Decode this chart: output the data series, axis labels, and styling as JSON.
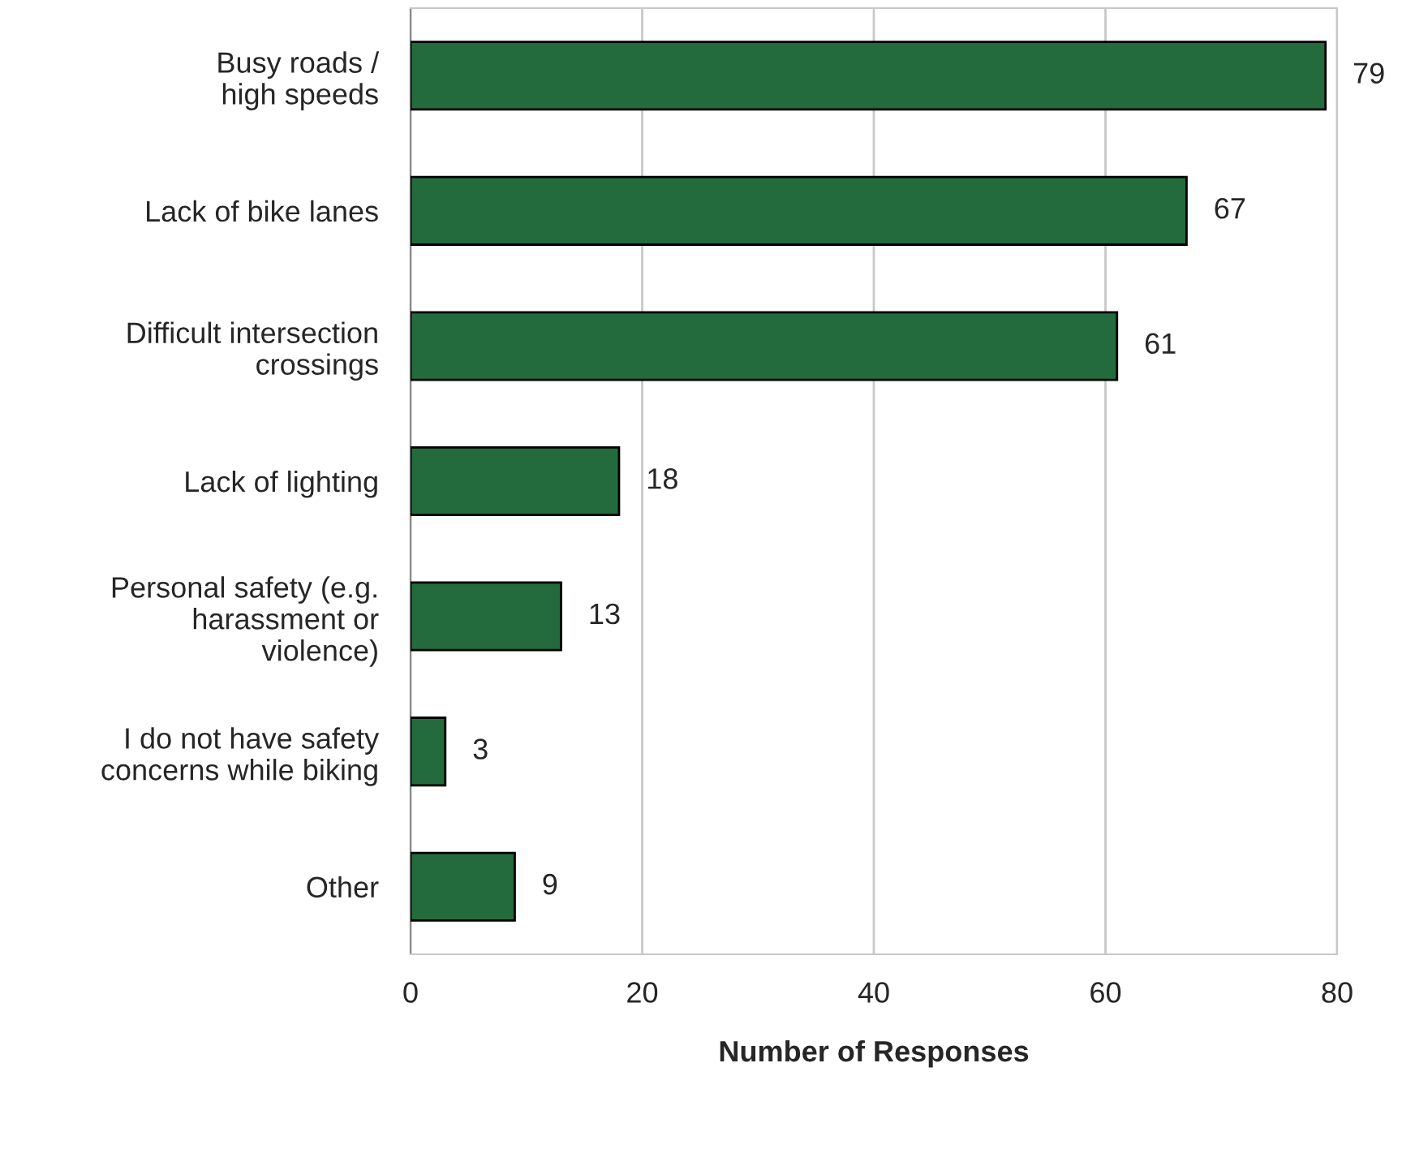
{
  "chart_data": {
    "type": "bar",
    "orientation": "horizontal",
    "xlabel": "Number of Responses",
    "categories": [
      "Busy roads /\nhigh speeds",
      "Lack of bike lanes",
      "Difficult intersection\ncrossings",
      "Lack of lighting",
      "Personal safety (e.g.\nharassment or\nviolence)",
      "I do not have safety\nconcerns while biking",
      "Other"
    ],
    "values": [
      79,
      67,
      61,
      18,
      13,
      3,
      9
    ],
    "color": "#236b3c",
    "xlim": [
      0,
      80
    ],
    "xticks": [
      0,
      20,
      40,
      60,
      80
    ],
    "grid": "x",
    "data_labels": true
  }
}
